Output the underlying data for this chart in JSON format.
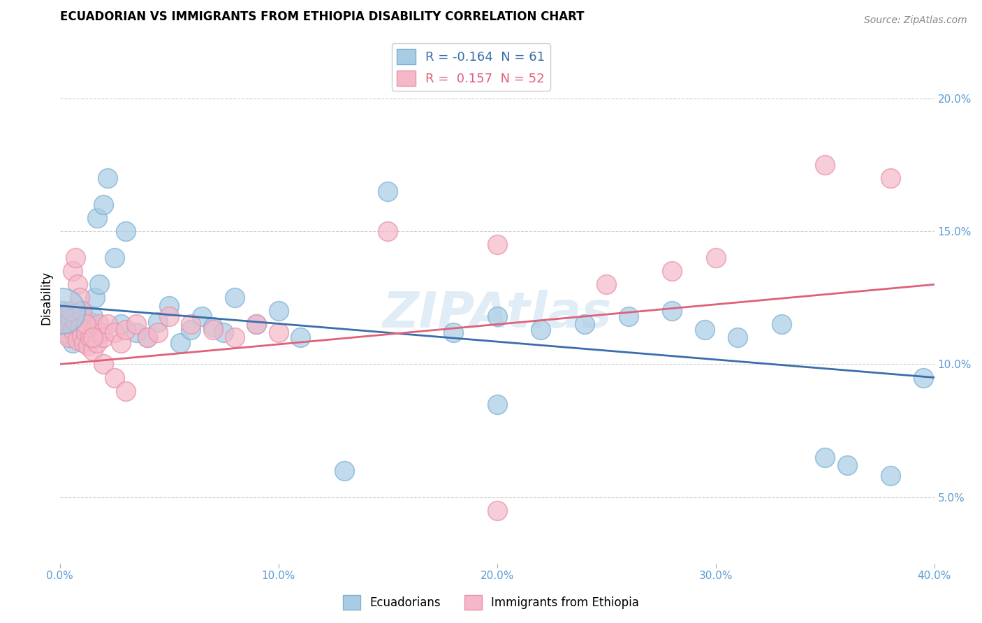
{
  "title": "ECUADORIAN VS IMMIGRANTS FROM ETHIOPIA DISABILITY CORRELATION CHART",
  "source_text": "Source: ZipAtlas.com",
  "ylabel": "Disability",
  "xmin": 0.0,
  "xmax": 0.4,
  "ymin": 0.025,
  "ymax": 0.225,
  "yticks": [
    0.05,
    0.1,
    0.15,
    0.2
  ],
  "ytick_labels": [
    "5.0%",
    "10.0%",
    "15.0%",
    "20.0%"
  ],
  "xticks": [
    0.0,
    0.1,
    0.2,
    0.3,
    0.4
  ],
  "xtick_labels": [
    "0.0%",
    "10.0%",
    "20.0%",
    "30.0%",
    "40.0%"
  ],
  "blue_color": "#a8cce4",
  "pink_color": "#f4b8c8",
  "blue_edge_color": "#7ab0d4",
  "pink_edge_color": "#e890aa",
  "blue_line_color": "#3a6eab",
  "pink_line_color": "#e0607a",
  "legend_R_blue": "-0.164",
  "legend_N_blue": "61",
  "legend_R_pink": "0.157",
  "legend_N_pink": "52",
  "legend_label_blue": "Ecuadorians",
  "legend_label_pink": "Immigrants from Ethiopia",
  "watermark": "ZIPAtlas",
  "blue_trend_x0": 0.0,
  "blue_trend_y0": 0.122,
  "blue_trend_x1": 0.4,
  "blue_trend_y1": 0.095,
  "pink_trend_x0": 0.0,
  "pink_trend_y0": 0.1,
  "pink_trend_x1": 0.4,
  "pink_trend_y1": 0.13,
  "blue_x": [
    0.001,
    0.002,
    0.002,
    0.003,
    0.003,
    0.004,
    0.004,
    0.005,
    0.005,
    0.006,
    0.006,
    0.007,
    0.007,
    0.008,
    0.008,
    0.009,
    0.009,
    0.01,
    0.01,
    0.011,
    0.012,
    0.013,
    0.014,
    0.015,
    0.016,
    0.017,
    0.018,
    0.02,
    0.022,
    0.025,
    0.028,
    0.03,
    0.035,
    0.04,
    0.045,
    0.05,
    0.055,
    0.06,
    0.065,
    0.07,
    0.075,
    0.08,
    0.09,
    0.1,
    0.11,
    0.15,
    0.18,
    0.2,
    0.22,
    0.24,
    0.26,
    0.28,
    0.295,
    0.31,
    0.33,
    0.35,
    0.36,
    0.38,
    0.395,
    0.2,
    0.13
  ],
  "blue_y": [
    0.12,
    0.115,
    0.118,
    0.112,
    0.117,
    0.113,
    0.119,
    0.11,
    0.116,
    0.108,
    0.114,
    0.111,
    0.118,
    0.115,
    0.112,
    0.119,
    0.113,
    0.117,
    0.12,
    0.115,
    0.113,
    0.114,
    0.116,
    0.118,
    0.125,
    0.155,
    0.13,
    0.16,
    0.17,
    0.14,
    0.115,
    0.15,
    0.112,
    0.11,
    0.116,
    0.122,
    0.108,
    0.113,
    0.118,
    0.114,
    0.112,
    0.125,
    0.115,
    0.12,
    0.11,
    0.165,
    0.112,
    0.118,
    0.113,
    0.115,
    0.118,
    0.12,
    0.113,
    0.11,
    0.115,
    0.065,
    0.062,
    0.058,
    0.095,
    0.085,
    0.06
  ],
  "blue_large_x": [
    0.001
  ],
  "blue_large_y": [
    0.12
  ],
  "pink_x": [
    0.001,
    0.002,
    0.003,
    0.004,
    0.005,
    0.006,
    0.007,
    0.008,
    0.009,
    0.01,
    0.011,
    0.012,
    0.013,
    0.014,
    0.015,
    0.016,
    0.017,
    0.018,
    0.019,
    0.02,
    0.022,
    0.025,
    0.028,
    0.03,
    0.035,
    0.04,
    0.045,
    0.05,
    0.06,
    0.07,
    0.08,
    0.09,
    0.1,
    0.15,
    0.2,
    0.25,
    0.28,
    0.3,
    0.35,
    0.38,
    0.005,
    0.006,
    0.007,
    0.008,
    0.009,
    0.01,
    0.012,
    0.015,
    0.02,
    0.025,
    0.03,
    0.2
  ],
  "pink_y": [
    0.118,
    0.112,
    0.115,
    0.11,
    0.117,
    0.113,
    0.116,
    0.109,
    0.114,
    0.111,
    0.108,
    0.112,
    0.107,
    0.11,
    0.105,
    0.113,
    0.108,
    0.115,
    0.112,
    0.11,
    0.115,
    0.112,
    0.108,
    0.113,
    0.115,
    0.11,
    0.112,
    0.118,
    0.115,
    0.113,
    0.11,
    0.115,
    0.112,
    0.15,
    0.145,
    0.13,
    0.135,
    0.14,
    0.175,
    0.17,
    0.12,
    0.135,
    0.14,
    0.13,
    0.125,
    0.12,
    0.115,
    0.11,
    0.1,
    0.095,
    0.09,
    0.045
  ],
  "background_color": "#ffffff",
  "grid_color": "#cccccc",
  "title_fontsize": 12,
  "tick_fontsize": 11,
  "source_fontsize": 10
}
